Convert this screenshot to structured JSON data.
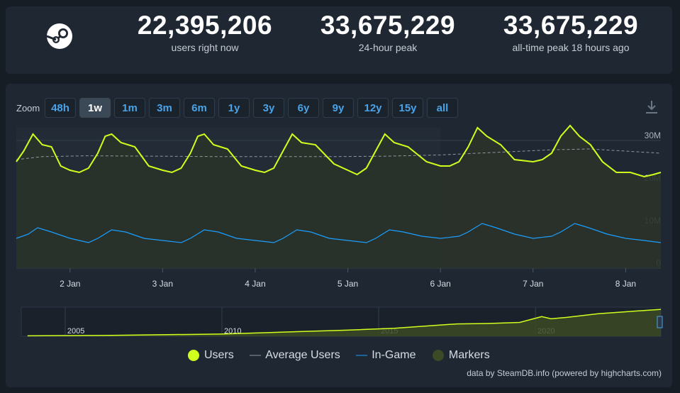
{
  "stats": [
    {
      "value": "22,395,206",
      "label": "users right now"
    },
    {
      "value": "33,675,229",
      "label": "24-hour peak"
    },
    {
      "value": "33,675,229",
      "label": "all-time peak 18 hours ago"
    }
  ],
  "zoom": {
    "label": "Zoom",
    "buttons": [
      "48h",
      "1w",
      "1m",
      "3m",
      "6m",
      "1y",
      "3y",
      "6y",
      "9y",
      "12y",
      "15y",
      "all"
    ],
    "active": "1w"
  },
  "chart_data": {
    "type": "line",
    "x_ticks": [
      "2 Jan",
      "3 Jan",
      "4 Jan",
      "5 Jan",
      "6 Jan",
      "7 Jan",
      "8 Jan"
    ],
    "y_ticks": [
      "0",
      "10M",
      "20M",
      "30M"
    ],
    "ylim": [
      0,
      33000000
    ],
    "x_range_days": [
      1.42,
      8.38
    ],
    "series": [
      {
        "name": "Users",
        "color": "#d0ff1d",
        "points": [
          [
            1.42,
            25.0
          ],
          [
            1.5,
            27.5
          ],
          [
            1.6,
            31.5
          ],
          [
            1.7,
            29.0
          ],
          [
            1.8,
            28.5
          ],
          [
            1.9,
            24.0
          ],
          [
            2.0,
            23.0
          ],
          [
            2.1,
            22.5
          ],
          [
            2.2,
            23.5
          ],
          [
            2.3,
            27.0
          ],
          [
            2.38,
            31.0
          ],
          [
            2.45,
            31.5
          ],
          [
            2.55,
            29.5
          ],
          [
            2.7,
            28.5
          ],
          [
            2.85,
            24.0
          ],
          [
            3.0,
            23.0
          ],
          [
            3.1,
            22.5
          ],
          [
            3.2,
            23.5
          ],
          [
            3.3,
            27.0
          ],
          [
            3.38,
            31.0
          ],
          [
            3.45,
            31.5
          ],
          [
            3.55,
            29.0
          ],
          [
            3.7,
            28.0
          ],
          [
            3.85,
            24.0
          ],
          [
            4.0,
            23.0
          ],
          [
            4.1,
            22.5
          ],
          [
            4.2,
            23.5
          ],
          [
            4.3,
            27.5
          ],
          [
            4.4,
            31.5
          ],
          [
            4.5,
            29.5
          ],
          [
            4.65,
            29.0
          ],
          [
            4.85,
            24.5
          ],
          [
            5.0,
            23.0
          ],
          [
            5.1,
            22.0
          ],
          [
            5.2,
            23.5
          ],
          [
            5.3,
            27.5
          ],
          [
            5.4,
            31.5
          ],
          [
            5.5,
            29.5
          ],
          [
            5.65,
            28.5
          ],
          [
            5.85,
            25.0
          ],
          [
            6.0,
            24.0
          ],
          [
            6.1,
            24.0
          ],
          [
            6.2,
            25.0
          ],
          [
            6.3,
            28.5
          ],
          [
            6.4,
            33.0
          ],
          [
            6.5,
            31.0
          ],
          [
            6.65,
            29.0
          ],
          [
            6.8,
            25.5
          ],
          [
            7.0,
            25.0
          ],
          [
            7.1,
            25.5
          ],
          [
            7.2,
            27.0
          ],
          [
            7.3,
            31.0
          ],
          [
            7.4,
            33.5
          ],
          [
            7.5,
            31.0
          ],
          [
            7.62,
            29.0
          ],
          [
            7.75,
            25.0
          ],
          [
            7.9,
            22.5
          ],
          [
            8.05,
            22.5
          ],
          [
            8.2,
            21.5
          ],
          [
            8.3,
            22.0
          ],
          [
            8.38,
            22.5
          ]
        ]
      },
      {
        "name": "Average Users",
        "color": "#8f98a0",
        "points": [
          [
            1.42,
            25.5
          ],
          [
            1.7,
            26.2
          ],
          [
            2.2,
            26.4
          ],
          [
            3.0,
            26.3
          ],
          [
            3.6,
            26.2
          ],
          [
            4.2,
            26.2
          ],
          [
            4.8,
            26.2
          ],
          [
            5.4,
            26.3
          ],
          [
            6.0,
            26.6
          ],
          [
            6.6,
            27.2
          ],
          [
            7.2,
            27.8
          ],
          [
            7.6,
            28.0
          ],
          [
            8.0,
            27.5
          ],
          [
            8.38,
            27.0
          ]
        ]
      },
      {
        "name": "In-Game",
        "color": "#1a9fff",
        "points": [
          [
            1.42,
            7.0
          ],
          [
            1.55,
            8.0
          ],
          [
            1.65,
            9.5
          ],
          [
            1.8,
            8.5
          ],
          [
            2.0,
            7.0
          ],
          [
            2.2,
            6.0
          ],
          [
            2.3,
            7.0
          ],
          [
            2.45,
            9.0
          ],
          [
            2.6,
            8.5
          ],
          [
            2.8,
            7.0
          ],
          [
            3.0,
            6.5
          ],
          [
            3.2,
            6.0
          ],
          [
            3.3,
            7.0
          ],
          [
            3.45,
            9.0
          ],
          [
            3.6,
            8.5
          ],
          [
            3.8,
            7.0
          ],
          [
            4.0,
            6.5
          ],
          [
            4.2,
            6.0
          ],
          [
            4.3,
            7.0
          ],
          [
            4.45,
            9.0
          ],
          [
            4.6,
            8.5
          ],
          [
            4.8,
            7.0
          ],
          [
            5.0,
            6.5
          ],
          [
            5.2,
            6.0
          ],
          [
            5.3,
            7.0
          ],
          [
            5.45,
            9.0
          ],
          [
            5.6,
            8.5
          ],
          [
            5.8,
            7.5
          ],
          [
            6.0,
            7.0
          ],
          [
            6.2,
            7.5
          ],
          [
            6.3,
            8.5
          ],
          [
            6.45,
            10.5
          ],
          [
            6.6,
            9.5
          ],
          [
            6.8,
            8.0
          ],
          [
            7.0,
            7.0
          ],
          [
            7.2,
            7.5
          ],
          [
            7.3,
            8.5
          ],
          [
            7.45,
            10.5
          ],
          [
            7.6,
            9.5
          ],
          [
            7.8,
            8.0
          ],
          [
            8.0,
            7.0
          ],
          [
            8.2,
            6.5
          ],
          [
            8.38,
            6.0
          ]
        ]
      }
    ],
    "navigator": {
      "x_ticks": [
        "2005",
        "2010",
        "2015",
        "2020"
      ],
      "range_years": [
        2003.6,
        2024.0
      ],
      "points": [
        [
          2003.8,
          0.3
        ],
        [
          2005.5,
          0.5
        ],
        [
          2006.5,
          0.6
        ],
        [
          2008.0,
          1.0
        ],
        [
          2010.0,
          1.5
        ],
        [
          2011.0,
          2.2
        ],
        [
          2012.5,
          3.2
        ],
        [
          2014.0,
          4.2
        ],
        [
          2015.5,
          5.5
        ],
        [
          2016.5,
          7.0
        ],
        [
          2017.5,
          8.5
        ],
        [
          2018.5,
          8.8
        ],
        [
          2019.5,
          9.5
        ],
        [
          2020.2,
          13.5
        ],
        [
          2020.5,
          12.0
        ],
        [
          2021.0,
          13.0
        ],
        [
          2022.0,
          15.5
        ],
        [
          2023.0,
          17.0
        ],
        [
          2024.0,
          18.5
        ]
      ]
    },
    "legend": [
      {
        "name": "Users",
        "color": "#d0ff1d"
      },
      {
        "name": "Average Users",
        "color": "#8f98a0"
      },
      {
        "name": "In-Game",
        "color": "#1a9fff"
      },
      {
        "name": "Markers",
        "color": "#3c4a25"
      }
    ],
    "grid": true
  },
  "credit": "data by SteamDB.info (powered by highcharts.com)"
}
